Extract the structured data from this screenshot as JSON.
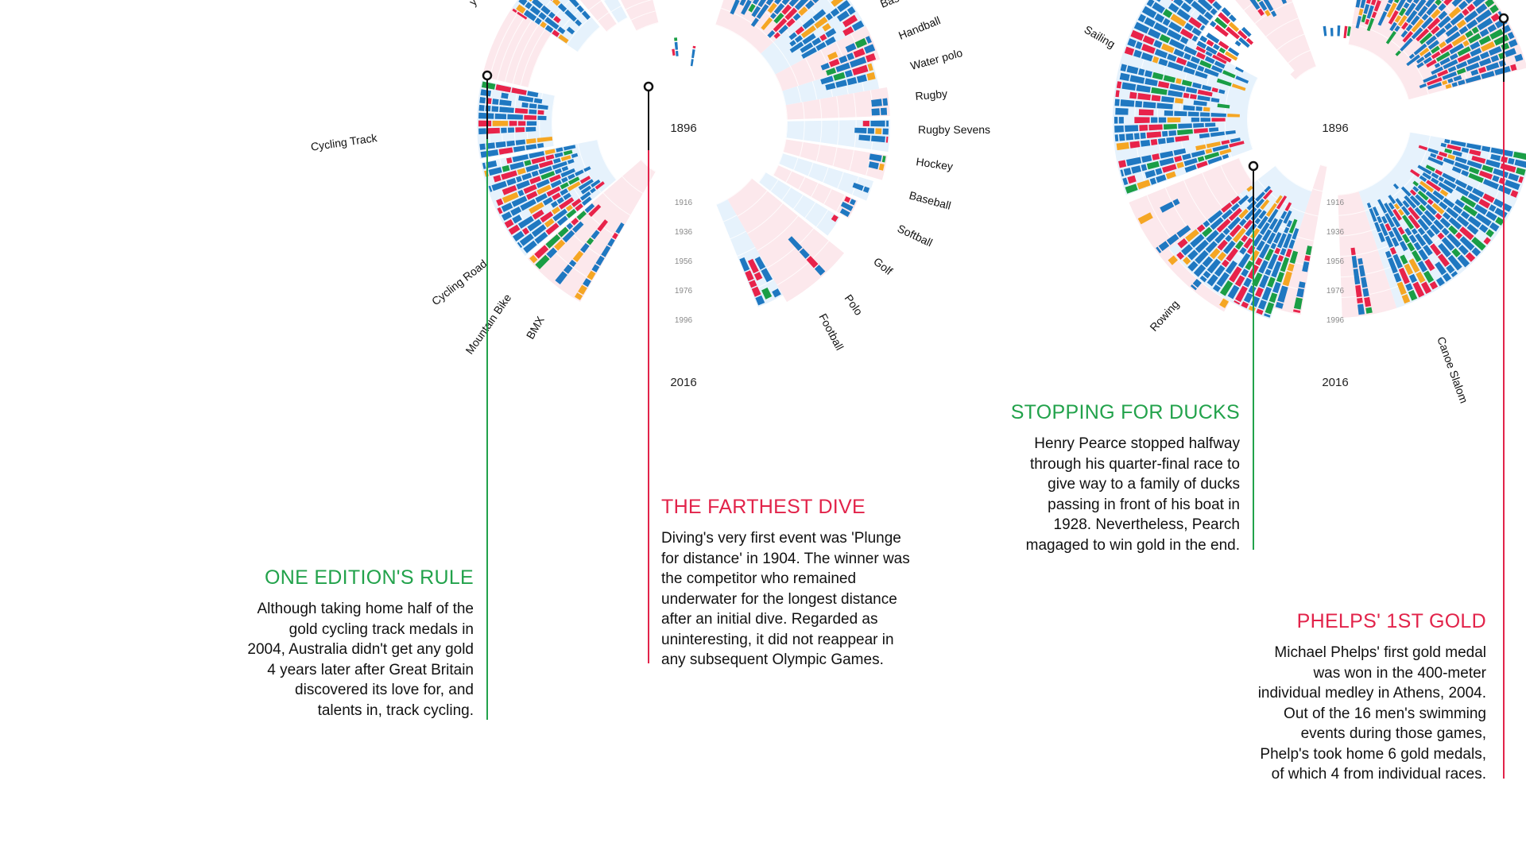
{
  "colors": {
    "gold_blue": "#1f78c1",
    "red": "#e8234a",
    "green": "#1a9e45",
    "orange": "#f5a623",
    "black": "#222222",
    "ring_blue": "#e6f2fc",
    "ring_pink": "#fce8ec",
    "annotation_green": "#22a24b",
    "annotation_red": "#e2234a"
  },
  "chart_data": [
    {
      "type": "radial",
      "axis_years": {
        "start": "1896",
        "end": "2016",
        "ticks": [
          "1916",
          "1936",
          "1956",
          "1976",
          "1996"
        ]
      },
      "sports": [
        "Cycling Track",
        "Cycling Road",
        "Mountain Bike",
        "BMX",
        "Handball",
        "Water polo",
        "Rugby",
        "Rugby Sevens",
        "Hockey",
        "Baseball",
        "Softball",
        "Golf",
        "Polo",
        "Football"
      ],
      "partial_labels": [
        "Bas",
        "y"
      ]
    },
    {
      "type": "radial",
      "axis_years": {
        "start": "1896",
        "end": "2016",
        "ticks": [
          "1916",
          "1936",
          "1956",
          "1976",
          "1996"
        ]
      },
      "sports": [
        "Sailing",
        "Rowing",
        "Canoe Slalom"
      ]
    }
  ],
  "annotations": [
    {
      "title": "ONE EDITION'S RULE",
      "text": [
        "Although taking home half of the",
        "gold cycling track medals in",
        "2004, Australia didn't get any gold",
        "4 years later after Great Britain",
        "discovered its love for, and",
        "talents in, track cycling."
      ]
    },
    {
      "title": "THE FARTHEST DIVE",
      "text": [
        "Diving's very first event was 'Plunge",
        "for distance' in 1904. The winner was",
        "the competitor who remained",
        "underwater for the longest distance",
        "after an initial dive. Regarded as",
        "uninteresting, it did not reappear in",
        "any subsequent Olympic Games."
      ]
    },
    {
      "title": "STOPPING FOR DUCKS",
      "text": [
        "Henry Pearce stopped halfway",
        "through his quarter-final race to",
        "give way to a family of ducks",
        "passing in front of his boat in",
        "1928. Nevertheless, Pearch",
        "magaged to win gold in the end."
      ]
    },
    {
      "title": "PHELPS' 1ST GOLD",
      "text": [
        "Michael Phelps' first gold medal",
        "was won in the 400-meter",
        "individual medley in Athens, 2004.",
        "Out of the 16 men's swimming",
        "events during those games,",
        "Phelp's took home 6 gold medals,",
        "of which 4 from individual races."
      ]
    }
  ]
}
